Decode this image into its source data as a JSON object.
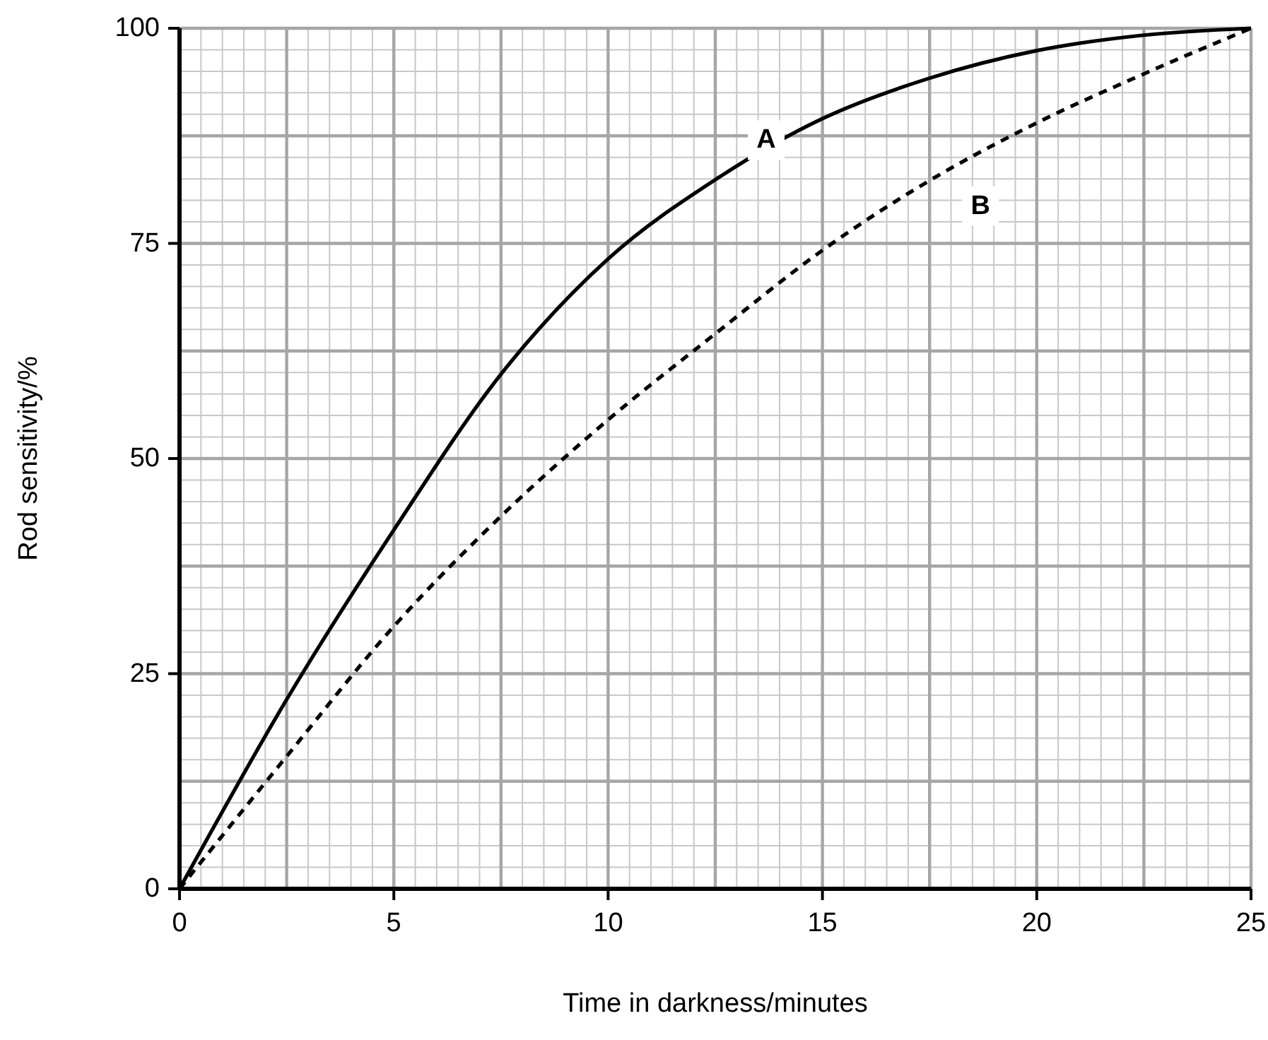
{
  "chart_data": {
    "type": "line",
    "xlabel": "Time in darkness/minutes",
    "ylabel": "Rod sensitivity/%",
    "x": [
      0,
      2.5,
      5,
      7.5,
      10,
      12.5,
      15,
      17.5,
      20,
      22.5,
      25
    ],
    "series": [
      {
        "name": "A",
        "color": "#000000",
        "line_style": "solid",
        "values": [
          0,
          22,
          41.7,
          59.8,
          73.2,
          82.4,
          89.5,
          94.2,
          97.4,
          99.2,
          100
        ]
      },
      {
        "name": "B",
        "color": "#000000",
        "line_style": "dashed",
        "values": [
          0,
          15.4,
          30.5,
          43.3,
          54.5,
          64.5,
          74.2,
          82.3,
          89,
          94.7,
          100
        ]
      }
    ],
    "xlim": [
      0,
      25
    ],
    "ylim": [
      0,
      100
    ],
    "xticks": [
      0,
      5,
      10,
      15,
      20,
      25
    ],
    "yticks": [
      0,
      25,
      50,
      75,
      100
    ],
    "grid": true,
    "marker": "none"
  }
}
